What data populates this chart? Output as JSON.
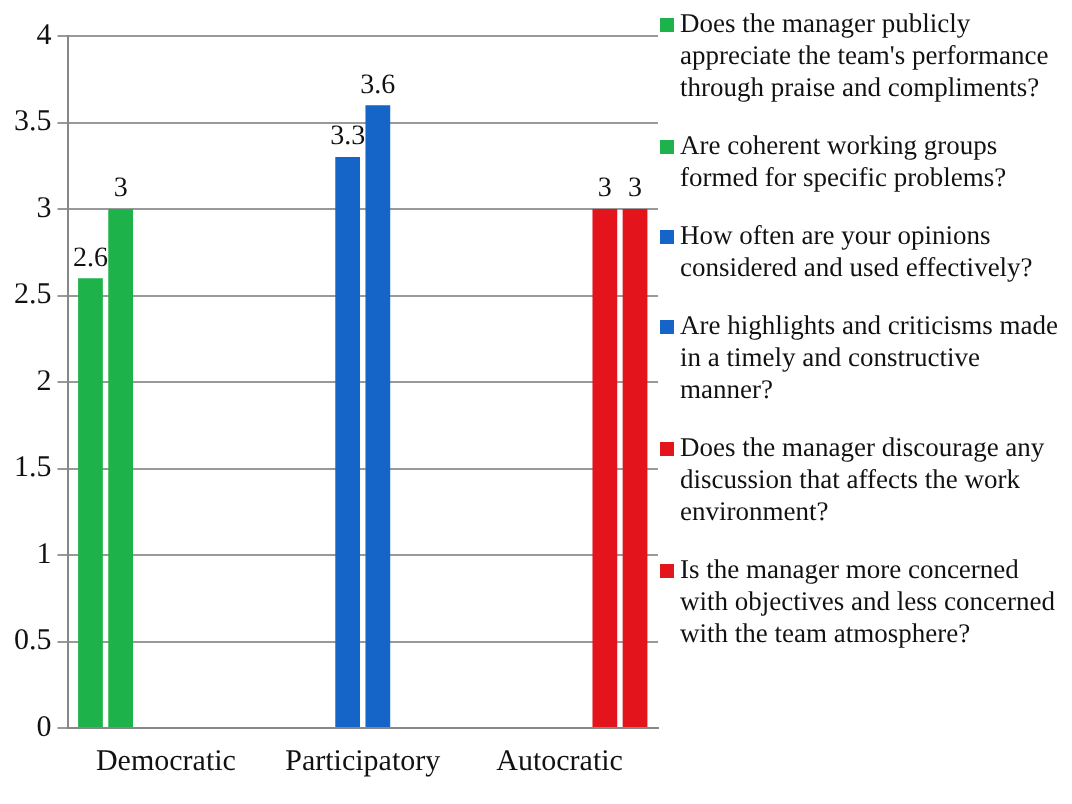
{
  "chart_data": {
    "type": "bar",
    "categories": [
      "Democratic",
      "Participatory",
      "Autocratic"
    ],
    "series": [
      {
        "name": "Does the manager publicly appreciate the team's performance through praise and compliments?",
        "color": "#1db34a",
        "values": [
          2.6,
          null,
          null
        ]
      },
      {
        "name": "Are coherent working groups formed for specific problems?",
        "color": "#1db34a",
        "values": [
          3,
          null,
          null
        ]
      },
      {
        "name": "How often are your opinions considered and used effectively?",
        "color": "#1565c8",
        "values": [
          null,
          3.3,
          null
        ]
      },
      {
        "name": "Are highlights and criticisms made in a timely and constructive manner?",
        "color": "#1565c8",
        "values": [
          null,
          3.6,
          null
        ]
      },
      {
        "name": "Does the manager discourage any discussion that affects the work environment?",
        "color": "#e3141c",
        "values": [
          null,
          null,
          3
        ]
      },
      {
        "name": "Is the manager more concerned with objectives and less concerned with the team atmosphere?",
        "color": "#e3141c",
        "values": [
          null,
          null,
          3
        ]
      }
    ],
    "ylim": [
      0,
      4
    ],
    "yticks": [
      0,
      0.5,
      1,
      1.5,
      2,
      2.5,
      3,
      3.5,
      4
    ],
    "grid": "y",
    "legend": "right",
    "data_labels": true
  }
}
